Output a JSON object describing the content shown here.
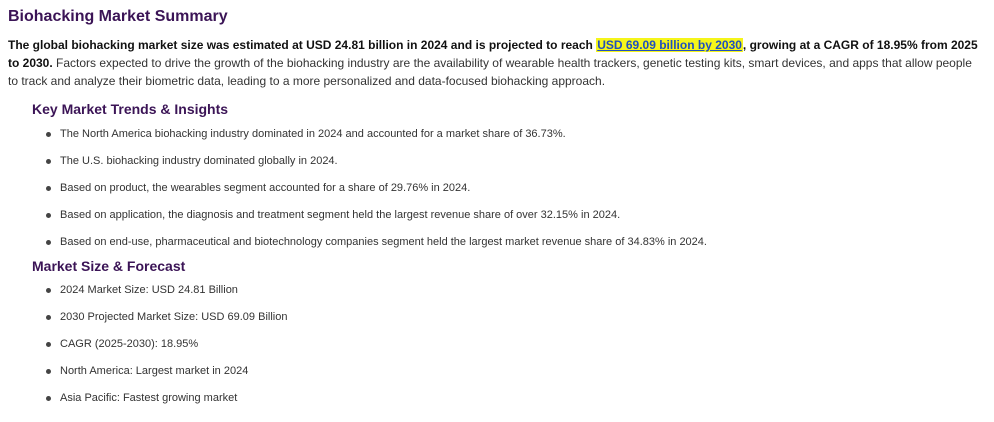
{
  "summary": {
    "title": "Biohacking Market Summary",
    "lead_text": "The global biohacking market size was estimated at USD 24.81 billion in 2024 and is projected to reach ",
    "highlight_text": "USD 69.09 billion by 2030",
    "lead_continue": ", growing at a CAGR of 18.95% from 2025 to 2030.",
    "body_text": " Factors expected to drive the growth of the biohacking industry are the availability of wearable health trackers, genetic testing kits, smart devices, and apps that allow people to track and analyze their biometric data, leading to a more personalized and data-focused biohacking approach."
  },
  "trends": {
    "heading": "Key Market Trends & Insights",
    "items": [
      "The North America biohacking industry dominated in 2024 and accounted for a market share of 36.73%.",
      "The U.S. biohacking industry dominated globally in 2024.",
      "Based on product, the wearables segment accounted for a share of 29.76% in 2024.",
      "Based on application, the diagnosis and treatment segment held the largest revenue share of over 32.15% in 2024.",
      "Based on end-use, pharmaceutical and biotechnology companies segment held the largest market revenue share of 34.83% in 2024."
    ]
  },
  "forecast": {
    "heading": "Market Size & Forecast",
    "items": [
      "2024 Market Size: USD 24.81 Billion",
      "2030 Projected Market Size: USD 69.09 Billion",
      "CAGR (2025-2030): 18.95%",
      "North America: Largest market in 2024",
      "Asia Pacific: Fastest growing market"
    ]
  },
  "colors": {
    "heading": "#3b1456",
    "highlight_background": "#f5f51a",
    "highlight_text": "#1f4fbf",
    "body_text": "#333333"
  }
}
